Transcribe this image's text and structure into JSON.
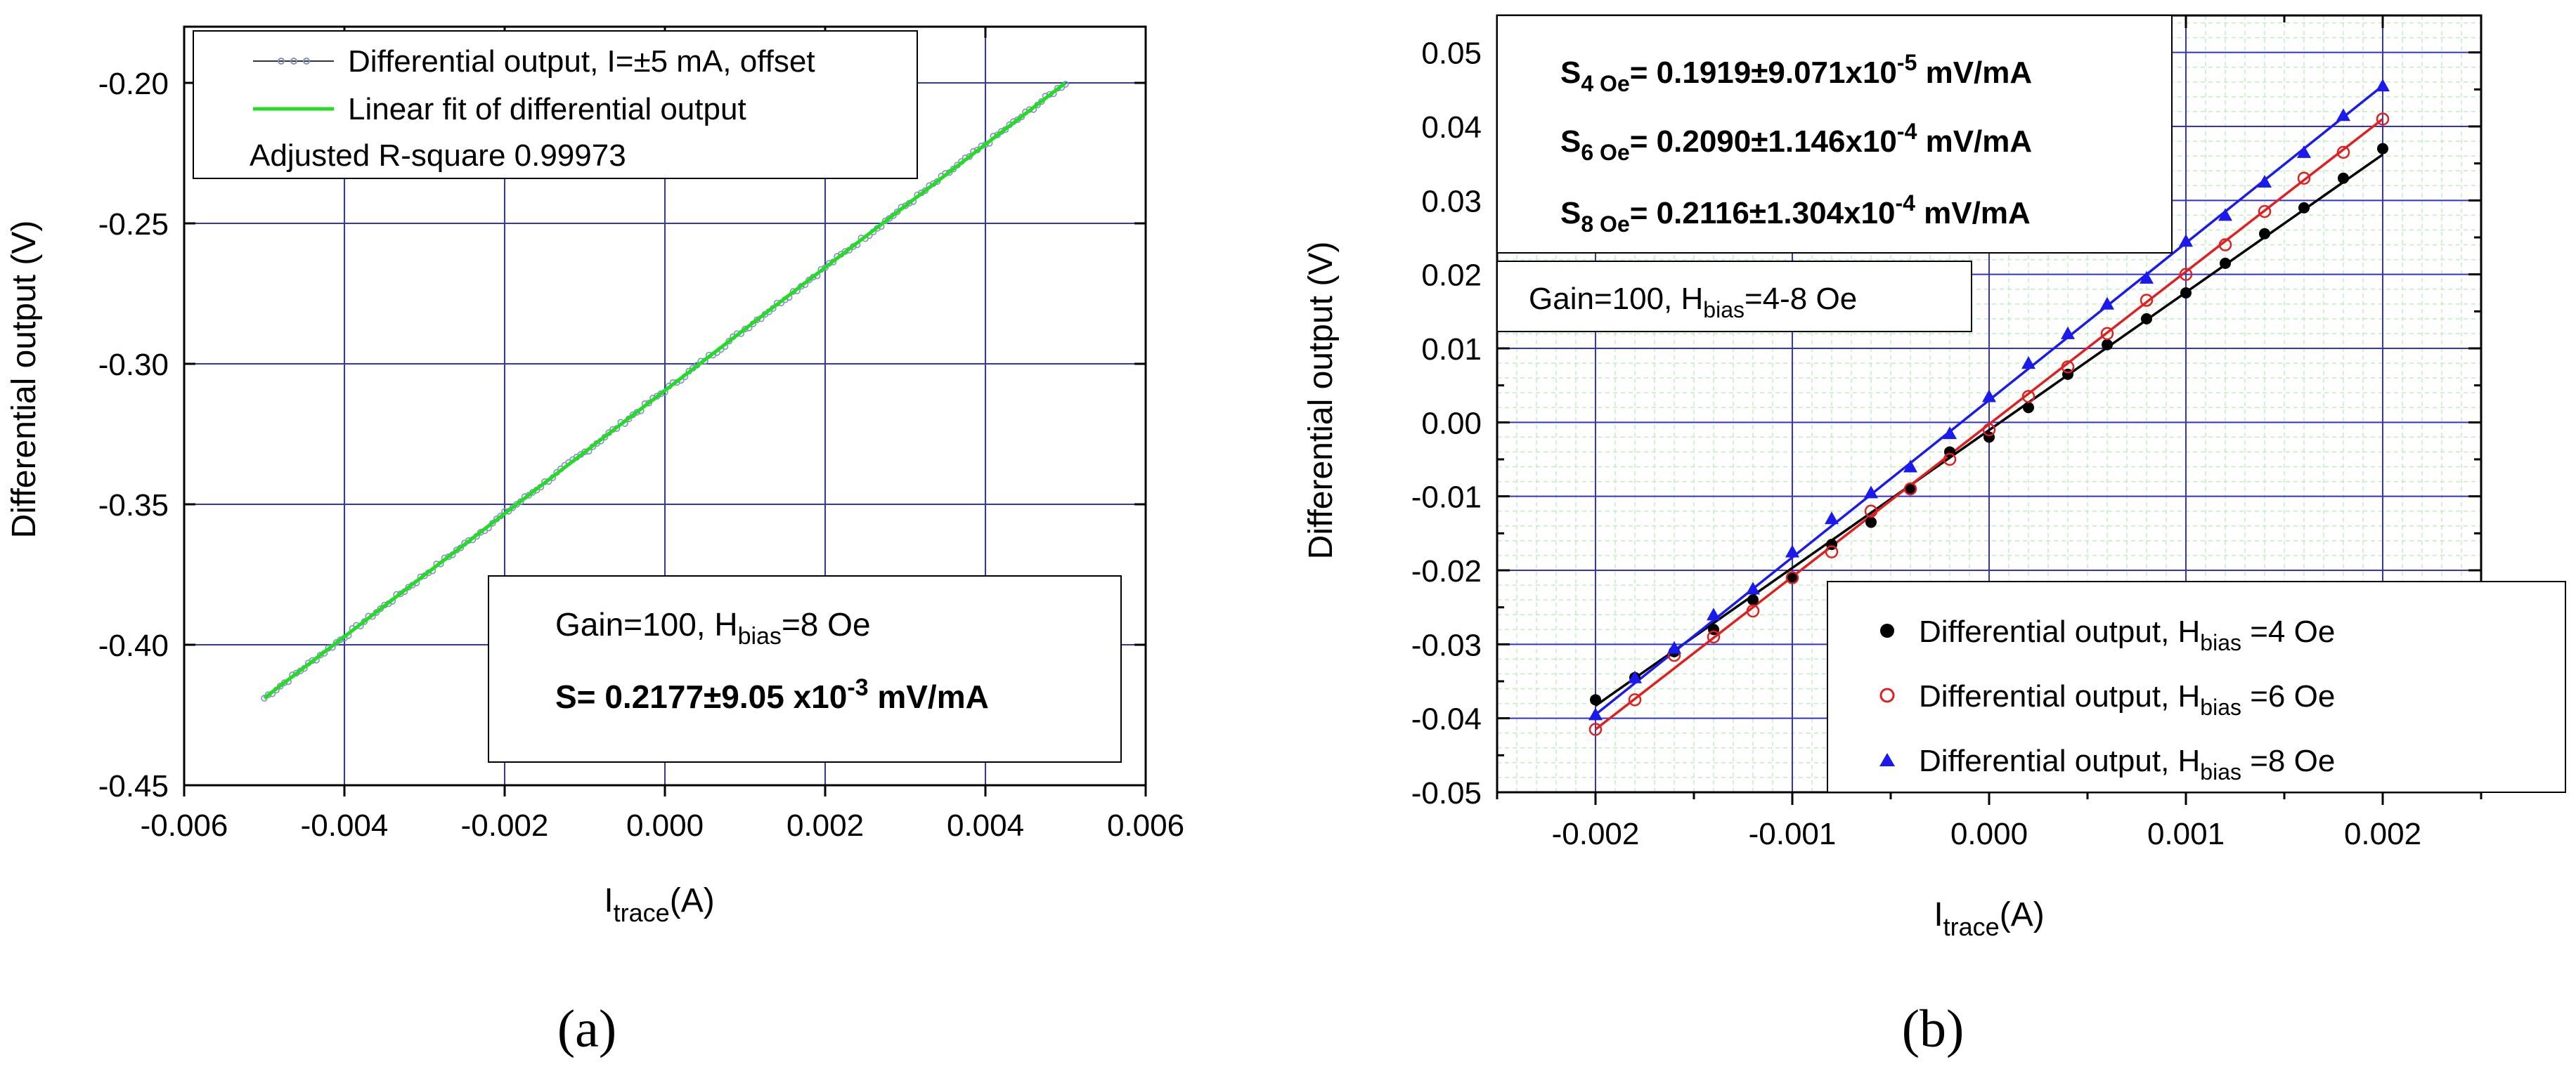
{
  "chart_data": [
    {
      "type": "scatter",
      "panel_label": "a",
      "xlabel": "I",
      "xlabel_sub": "trace",
      "xlabel_unit": "(A)",
      "ylabel": "Differential output (V)",
      "xlim": [
        -0.006,
        0.006
      ],
      "ylim": [
        -0.45,
        -0.18
      ],
      "xticks": [
        -0.006,
        -0.004,
        -0.002,
        0.0,
        0.002,
        0.004,
        0.006
      ],
      "xtick_labels": [
        "-0.006",
        "-0.004",
        "-0.002",
        "0.000",
        "0.002",
        "0.004",
        "0.006"
      ],
      "yticks": [
        -0.45,
        -0.4,
        -0.35,
        -0.3,
        -0.25,
        -0.2
      ],
      "ytick_labels": [
        "-0.45",
        "-0.40",
        "-0.35",
        "-0.30",
        "-0.25",
        "-0.20"
      ],
      "grid": true,
      "series": [
        {
          "name": "Differential output, I=±5 mA, offset",
          "kind": "points",
          "color": "#7f8fbf",
          "x_range": [
            -0.005,
            0.005
          ],
          "y_range": [
            -0.419,
            -0.2
          ],
          "count": 201
        },
        {
          "name": "Linear fit of differential output",
          "kind": "fit",
          "color": "#22dd22",
          "x": [
            -0.005,
            0.005
          ],
          "y": [
            -0.419,
            -0.2
          ]
        }
      ],
      "legend": {
        "position": "top-left",
        "entries": [
          "Differential output, I=±5 mA, offset",
          "Linear fit of differential output"
        ],
        "note": "Adjusted R-square 0.99973"
      },
      "annotation": {
        "position": "bottom-right",
        "line1_prefix": "Gain=100, H",
        "line1_sub": "bias",
        "line1_suffix": "=8 Oe",
        "line2_prefix": "S= 0.2177±9.05 x10",
        "line2_sup": "-3",
        "line2_suffix": " mV/mA"
      }
    },
    {
      "type": "scatter",
      "panel_label": "b",
      "xlabel": "I",
      "xlabel_sub": "trace",
      "xlabel_unit": "(A)",
      "ylabel": "Differential output (V)",
      "xlim": [
        -0.0025,
        0.0025
      ],
      "ylim": [
        -0.05,
        0.055
      ],
      "xticks": [
        -0.002,
        -0.001,
        0.0,
        0.001,
        0.002
      ],
      "xtick_labels": [
        "-0.002",
        "-0.001",
        "0.000",
        "0.001",
        "0.002"
      ],
      "yticks": [
        -0.05,
        -0.04,
        -0.03,
        -0.02,
        -0.01,
        0.0,
        0.01,
        0.02,
        0.03,
        0.04,
        0.05
      ],
      "ytick_labels": [
        "-0.05",
        "-0.04",
        "-0.03",
        "-0.02",
        "-0.01",
        "0.00",
        "0.01",
        "0.02",
        "0.03",
        "0.04",
        "0.05"
      ],
      "grid": true,
      "minor_grid": true,
      "x": [
        -0.002,
        -0.0018,
        -0.0016,
        -0.0014,
        -0.0012,
        -0.001,
        -0.0008,
        -0.0006,
        -0.0004,
        -0.0002,
        0.0,
        0.0002,
        0.0004,
        0.0006,
        0.0008,
        0.001,
        0.0012,
        0.0014,
        0.0016,
        0.0018,
        0.002
      ],
      "series": [
        {
          "name": "Differential output, H_bias =4 Oe",
          "marker": "filled-circle",
          "color": "#000000",
          "values": [
            -0.0375,
            -0.0345,
            -0.031,
            -0.028,
            -0.024,
            -0.021,
            -0.0165,
            -0.0135,
            -0.009,
            -0.004,
            -0.002,
            0.002,
            0.0065,
            0.0105,
            0.014,
            0.0175,
            0.0215,
            0.0255,
            0.029,
            0.033,
            0.037
          ],
          "fit": [
            -0.0383,
            -0.0346,
            -0.0309,
            -0.0271,
            -0.0234,
            -0.0197,
            -0.016,
            -0.0122,
            -0.0085,
            -0.0048,
            -0.001,
            0.0027,
            0.0064,
            0.0101,
            0.0139,
            0.0176,
            0.0213,
            0.025,
            0.0288,
            0.0325,
            0.0362
          ]
        },
        {
          "name": "Differential output, H_bias =6 Oe",
          "marker": "open-circle",
          "color": "#e02020",
          "values": [
            -0.0415,
            -0.0375,
            -0.0315,
            -0.029,
            -0.0255,
            -0.021,
            -0.0175,
            -0.012,
            -0.009,
            -0.005,
            -0.001,
            0.0035,
            0.0075,
            0.012,
            0.0165,
            0.02,
            0.024,
            0.0285,
            0.033,
            0.0365,
            0.041
          ]
        },
        {
          "name": "Differential output, H_bias =8 Oe",
          "marker": "filled-triangle",
          "color": "#1a1aee",
          "values": [
            -0.0395,
            -0.0345,
            -0.0305,
            -0.026,
            -0.0225,
            -0.0175,
            -0.013,
            -0.0095,
            -0.006,
            -0.0015,
            0.0035,
            0.008,
            0.012,
            0.016,
            0.0195,
            0.0245,
            0.028,
            0.0325,
            0.0365,
            0.0415,
            0.0455
          ]
        }
      ],
      "fit_lines": [
        {
          "series": "Differential output, H_bias =4 Oe",
          "color": "#000000",
          "y": [
            -0.0383,
            0.0362
          ]
        },
        {
          "series": "Differential output, H_bias =6 Oe",
          "color": "#e02020",
          "y": [
            -0.0415,
            0.041
          ]
        },
        {
          "series": "Differential output, H_bias =8 Oe",
          "color": "#1a1aee",
          "y": [
            -0.0395,
            0.0455
          ]
        }
      ],
      "legend": {
        "position": "bottom-right",
        "prefix": "Differential output, H",
        "sub": "bias",
        "suffixes": [
          " =4 Oe",
          " =6 Oe",
          " =8 Oe"
        ]
      },
      "sensitivity_box": {
        "position": "top-left",
        "lines": [
          {
            "lead": "S",
            "sub": "4 Oe",
            "value": "= 0.1919±9.071x10",
            "exp": "-5",
            "unit": " mV/mA"
          },
          {
            "lead": "S",
            "sub": "6 Oe",
            "value": "= 0.2090±1.146x10",
            "exp": "-4",
            "unit": " mV/mA"
          },
          {
            "lead": "S",
            "sub": "8 Oe",
            "value": "= 0.2116±1.304x10",
            "exp": "-4",
            "unit": " mV/mA"
          }
        ]
      },
      "gain_box": {
        "position": "upper-left",
        "prefix": "Gain=100, H",
        "sub": "bias",
        "suffix": "=4-8 Oe"
      }
    }
  ],
  "captions": [
    "(a)",
    "(b)"
  ]
}
